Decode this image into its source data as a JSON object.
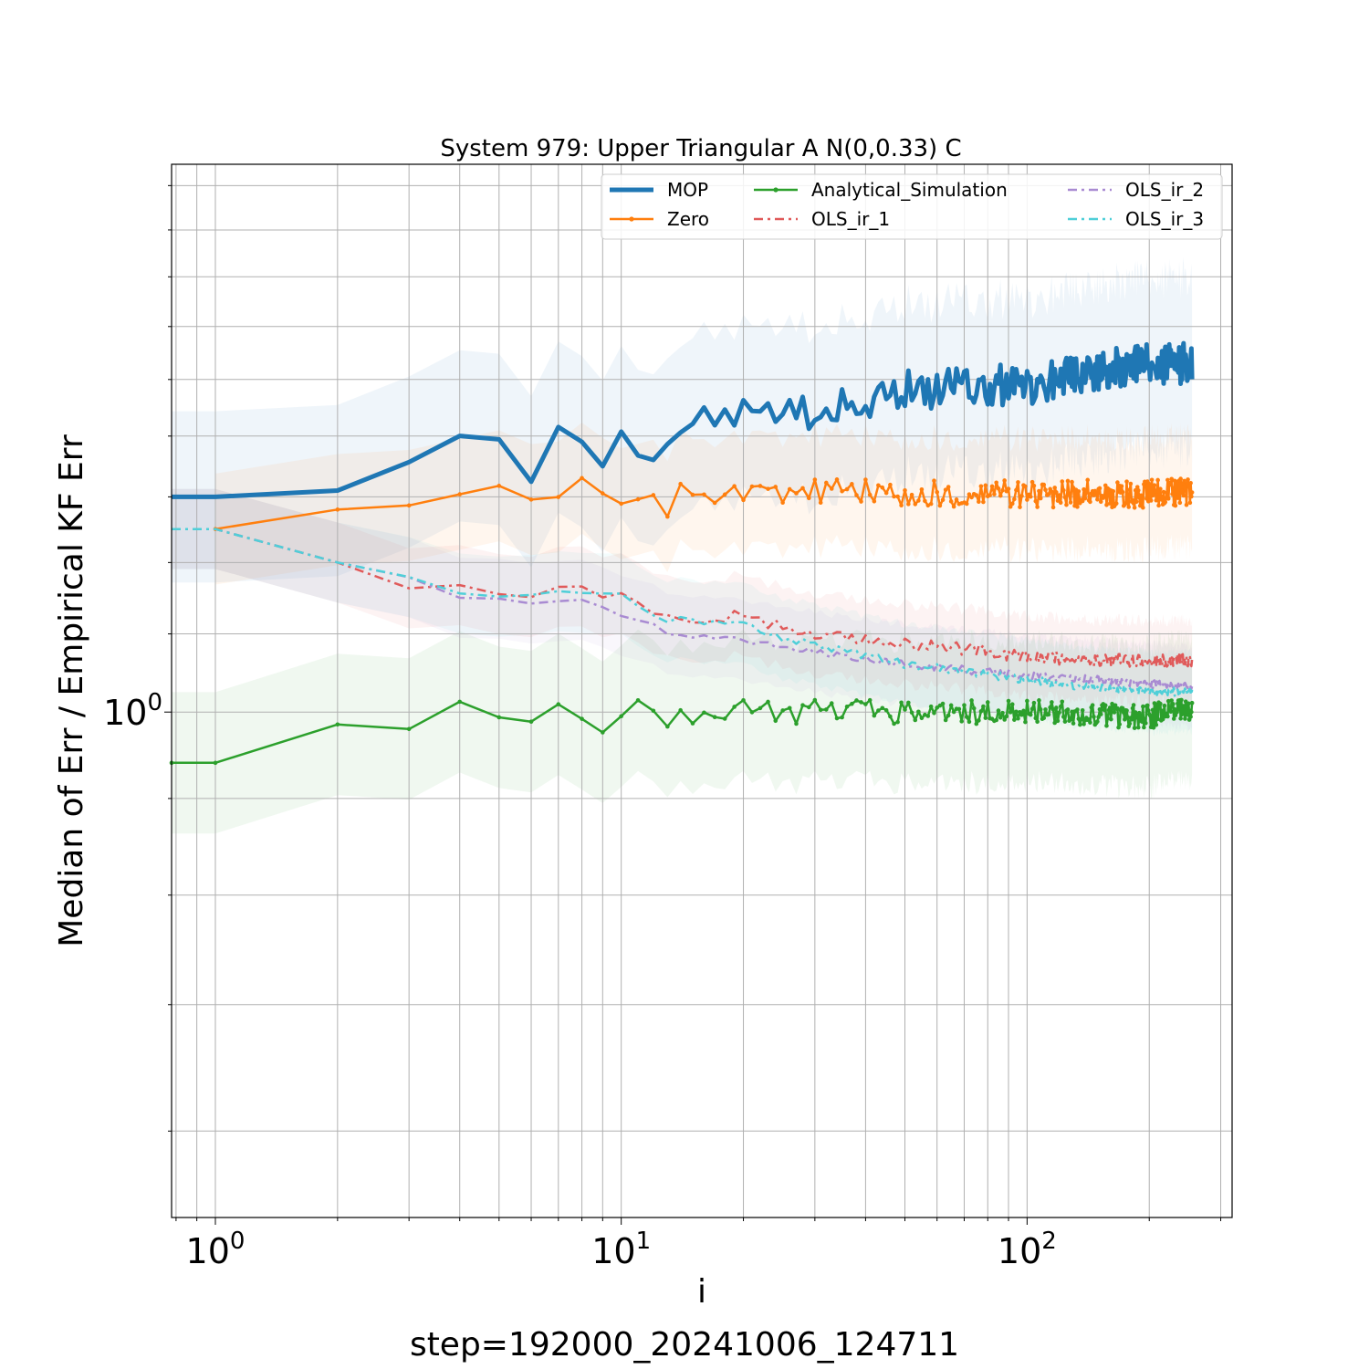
{
  "chart_data": {
    "type": "line",
    "title": "System 979: Upper Triangular A N(0,0.33) C",
    "xlabel": "i",
    "ylabel": "Median of Err / Empirical KF Err",
    "footer": "step=192000_20241006_124711",
    "xscale": "log",
    "yscale": "log",
    "xlim": [
      0.78,
      320
    ],
    "ylim": [
      0.54,
      1.95
    ],
    "grid": true,
    "legend_position": "upper-right",
    "x_ticks": [
      {
        "value": 1,
        "base": "10",
        "exp": "0"
      },
      {
        "value": 10,
        "base": "10",
        "exp": "1"
      },
      {
        "value": 100,
        "base": "10",
        "exp": "2"
      }
    ],
    "y_ticks": [
      {
        "value": 1,
        "base": "10",
        "exp": "0"
      }
    ],
    "series": [
      {
        "name": "MOP",
        "color": "#1f77b4",
        "width": 5,
        "dash": "",
        "marker": false,
        "band": 0.11,
        "anchors": [
          [
            0.78,
            1.3
          ],
          [
            1,
            1.3
          ],
          [
            2,
            1.31
          ],
          [
            3,
            1.38
          ],
          [
            4,
            1.385
          ],
          [
            5,
            1.38
          ],
          [
            6,
            1.355
          ],
          [
            7,
            1.41
          ],
          [
            8,
            1.4
          ],
          [
            9,
            1.38
          ],
          [
            10,
            1.4
          ],
          [
            11,
            1.4
          ],
          [
            12,
            1.39
          ],
          [
            13,
            1.39
          ],
          [
            15,
            1.42
          ],
          [
            17,
            1.43
          ],
          [
            20,
            1.46
          ],
          [
            25,
            1.43
          ],
          [
            30,
            1.45
          ],
          [
            40,
            1.45
          ],
          [
            50,
            1.48
          ],
          [
            70,
            1.49
          ],
          [
            100,
            1.49
          ],
          [
            130,
            1.51
          ],
          [
            160,
            1.52
          ],
          [
            200,
            1.53
          ],
          [
            260,
            1.53
          ]
        ],
        "noise": 0.025
      },
      {
        "name": "Zero",
        "color": "#ff7f0e",
        "width": 2.5,
        "dash": "",
        "marker": true,
        "band": 0.07,
        "anchors": [
          [
            1,
            1.25
          ],
          [
            2,
            1.28
          ],
          [
            3,
            1.3
          ],
          [
            4,
            1.305
          ],
          [
            5,
            1.3
          ],
          [
            6,
            1.31
          ],
          [
            8,
            1.31
          ],
          [
            9,
            1.29
          ],
          [
            10,
            1.31
          ],
          [
            12,
            1.3
          ],
          [
            13,
            1.29
          ],
          [
            15,
            1.31
          ],
          [
            20,
            1.31
          ],
          [
            30,
            1.31
          ],
          [
            50,
            1.305
          ],
          [
            100,
            1.305
          ],
          [
            200,
            1.305
          ],
          [
            260,
            1.31
          ]
        ],
        "noise": 0.017
      },
      {
        "name": "Analytical_Simulation",
        "color": "#2ca02c",
        "width": 2.5,
        "dash": "",
        "marker": true,
        "band": 0.09,
        "anchors": [
          [
            0.78,
            0.94
          ],
          [
            1,
            0.94
          ],
          [
            2,
            0.985
          ],
          [
            3,
            0.98
          ],
          [
            4,
            1.015
          ],
          [
            5,
            0.99
          ],
          [
            6,
            1.0
          ],
          [
            7,
            1.015
          ],
          [
            8,
            1.0
          ],
          [
            9,
            0.99
          ],
          [
            10,
            1.01
          ],
          [
            13,
            0.995
          ],
          [
            20,
            1.0
          ],
          [
            30,
            1.0
          ],
          [
            50,
            1.0
          ],
          [
            100,
            1.0
          ],
          [
            200,
            0.995
          ],
          [
            260,
            1.005
          ]
        ],
        "noise": 0.015
      },
      {
        "name": "OLS_ir_1",
        "color": "#e05a5a",
        "width": 2.5,
        "dash": "10,5,3,5",
        "marker": false,
        "band": 0.05,
        "anchors": [
          [
            0.78,
            1.25
          ],
          [
            1,
            1.25
          ],
          [
            2,
            1.2
          ],
          [
            3,
            1.16
          ],
          [
            4,
            1.17
          ],
          [
            5,
            1.155
          ],
          [
            7,
            1.16
          ],
          [
            10,
            1.15
          ],
          [
            13,
            1.12
          ],
          [
            20,
            1.125
          ],
          [
            30,
            1.1
          ],
          [
            50,
            1.085
          ],
          [
            70,
            1.08
          ],
          [
            100,
            1.07
          ],
          [
            150,
            1.065
          ],
          [
            200,
            1.065
          ],
          [
            260,
            1.065
          ]
        ],
        "noise": 0.008
      },
      {
        "name": "OLS_ir_2",
        "color": "#a98bd2",
        "width": 2.5,
        "dash": "10,5,3,5",
        "marker": false,
        "band": 0.05,
        "anchors": [
          [
            0.78,
            1.25
          ],
          [
            1,
            1.25
          ],
          [
            2,
            1.2
          ],
          [
            3,
            1.18
          ],
          [
            4,
            1.145
          ],
          [
            5,
            1.15
          ],
          [
            6,
            1.145
          ],
          [
            7,
            1.15
          ],
          [
            10,
            1.13
          ],
          [
            13,
            1.105
          ],
          [
            20,
            1.09
          ],
          [
            30,
            1.075
          ],
          [
            50,
            1.06
          ],
          [
            100,
            1.045
          ],
          [
            150,
            1.04
          ],
          [
            200,
            1.035
          ],
          [
            260,
            1.03
          ]
        ],
        "noise": 0.005
      },
      {
        "name": "OLS_ir_3",
        "color": "#4fcfd8",
        "width": 2.5,
        "dash": "10,5,3,5",
        "marker": false,
        "band": 0.05,
        "anchors": [
          [
            0.78,
            1.25
          ],
          [
            1,
            1.25
          ],
          [
            2,
            1.2
          ],
          [
            3,
            1.18
          ],
          [
            4,
            1.155
          ],
          [
            5,
            1.155
          ],
          [
            7,
            1.16
          ],
          [
            10,
            1.15
          ],
          [
            13,
            1.12
          ],
          [
            18,
            1.115
          ],
          [
            20,
            1.115
          ],
          [
            25,
            1.095
          ],
          [
            30,
            1.085
          ],
          [
            50,
            1.06
          ],
          [
            100,
            1.04
          ],
          [
            150,
            1.03
          ],
          [
            200,
            1.025
          ],
          [
            260,
            1.025
          ]
        ],
        "noise": 0.005
      }
    ]
  }
}
